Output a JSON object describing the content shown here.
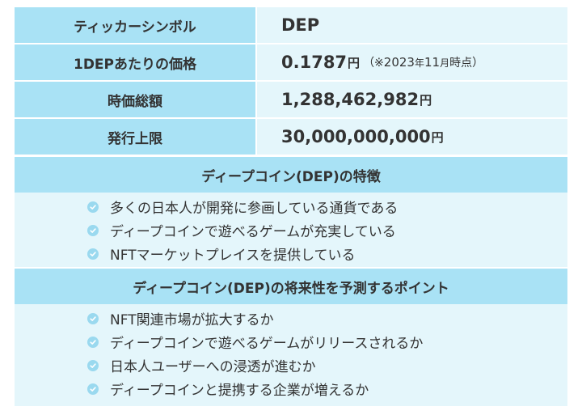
{
  "table": {
    "rows": [
      {
        "label": "ティッカーシンボル",
        "value": "DEP"
      },
      {
        "label": "1DEPあたりの価格",
        "value": "0.1787",
        "unit": "円",
        "note_pre": "（※",
        "note_year": "2023",
        "note_year_unit": "年",
        "note_month": "11",
        "note_month_unit": "月",
        "note_post": "時点）"
      },
      {
        "label": "時価総額",
        "value": "1,288,462,982",
        "unit": "円"
      },
      {
        "label": "発行上限",
        "value": "30,000,000,000",
        "unit": "円"
      }
    ]
  },
  "features": {
    "title": "ディープコイン(DEP)の特徴",
    "items": [
      "多くの日本人が開発に参画している通貨である",
      "ディープコインで遊べるゲームが充実している",
      "NFTマーケットプレイスを提供している"
    ]
  },
  "forecast": {
    "title": "ディープコイン(DEP)の将来性を予測するポイント",
    "items": [
      "NFT関連市場が拡大するか",
      "ディープコインで遊べるゲームがリリースされるか",
      "日本人ユーザーへの浸透が進むか",
      "ディープコインと提携する企業が増えるか"
    ]
  },
  "icons": {
    "bullet": "check-circle-icon"
  },
  "colors": {
    "header_bg": "#a9e2f5",
    "cell_bg": "#e4f6fb",
    "bullet": "#9ad9ef",
    "text": "#333333"
  }
}
